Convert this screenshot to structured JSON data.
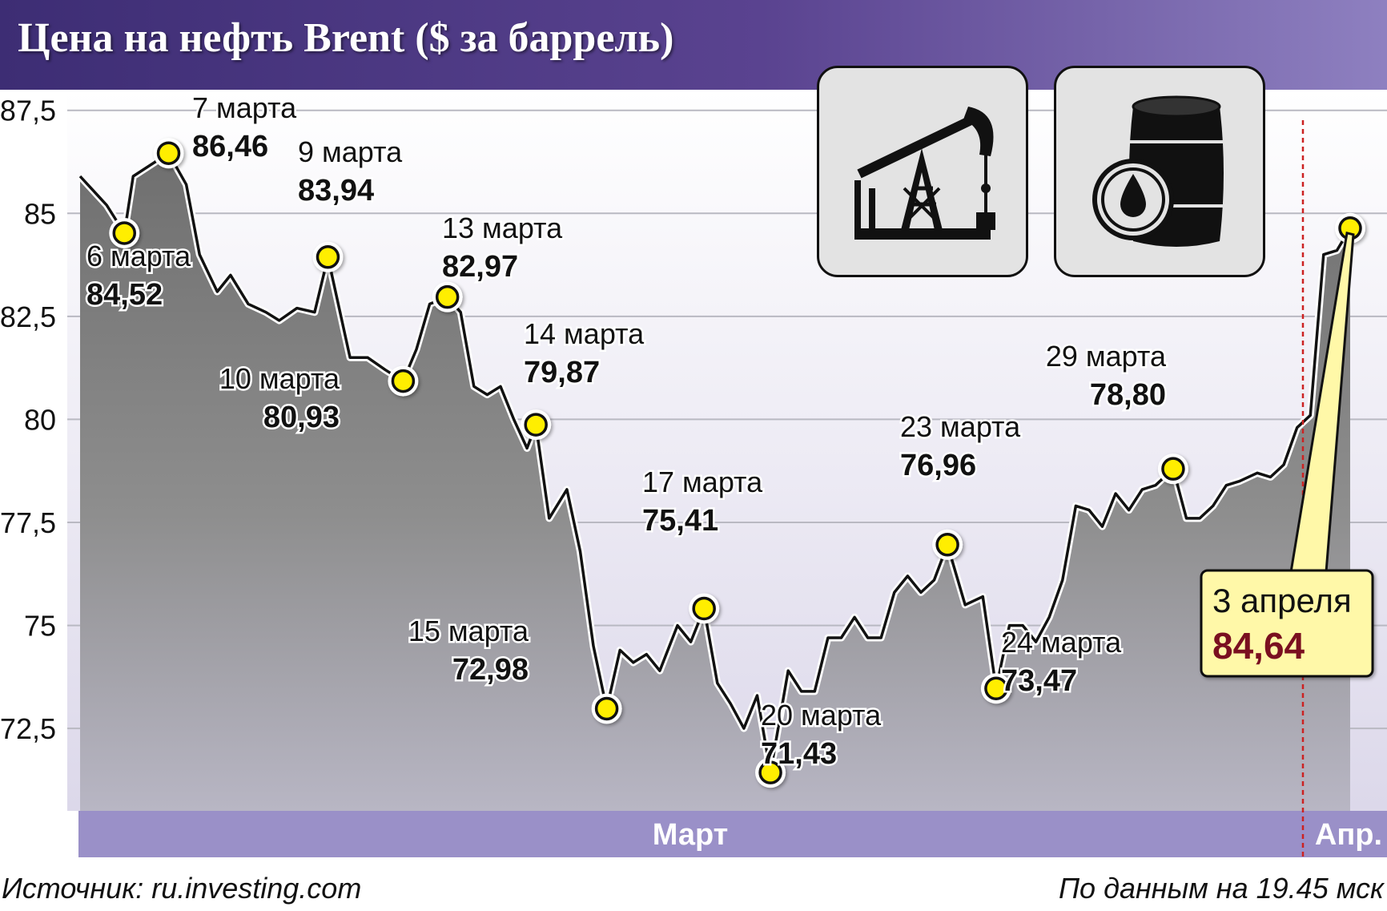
{
  "title": "Цена на нефть Brent ($ за баррель)",
  "footer": {
    "source": "Источник: ru.investing.com",
    "as_of": "По данным на 19.45 мск"
  },
  "icons": [
    "oil-pump-jack-icon",
    "oil-barrel-icon"
  ],
  "colors": {
    "header": "#4a3782",
    "area_fill": "#8a8a8a",
    "marker": "#ffee00",
    "axis_band": "#9a90c8",
    "highlight_value": "#7a1020",
    "callout_bg": "#fff8a8",
    "divider": "#cc2222"
  },
  "chart_data": {
    "type": "area",
    "ylim": [
      70.5,
      88
    ],
    "yticks": [
      72.5,
      75,
      77.5,
      80,
      82.5,
      85,
      87.5
    ],
    "ytick_labels": [
      "72,5",
      "75",
      "77,5",
      "80",
      "82,5",
      "85",
      "87,5"
    ],
    "x_band_labels": [
      "Март",
      "Апр."
    ],
    "grid": true,
    "series_line": [
      [
        0,
        85.9
      ],
      [
        0.6,
        85.2
      ],
      [
        1,
        84.52
      ],
      [
        1.2,
        85.9
      ],
      [
        2,
        86.46
      ],
      [
        2.4,
        85.7
      ],
      [
        2.7,
        84.0
      ],
      [
        3.1,
        83.1
      ],
      [
        3.4,
        83.5
      ],
      [
        3.8,
        82.8
      ],
      [
        4.2,
        82.6
      ],
      [
        4.5,
        82.4
      ],
      [
        4.9,
        82.7
      ],
      [
        5.3,
        82.6
      ],
      [
        5.6,
        83.94
      ],
      [
        6.1,
        81.5
      ],
      [
        6.5,
        81.5
      ],
      [
        6.9,
        81.2
      ],
      [
        7.3,
        80.93
      ],
      [
        7.6,
        81.7
      ],
      [
        7.9,
        82.8
      ],
      [
        8.3,
        82.97
      ],
      [
        8.6,
        82.6
      ],
      [
        8.9,
        80.8
      ],
      [
        9.2,
        80.6
      ],
      [
        9.5,
        80.8
      ],
      [
        9.8,
        80.0
      ],
      [
        10.1,
        79.3
      ],
      [
        10.3,
        79.87
      ],
      [
        10.6,
        77.6
      ],
      [
        11.0,
        78.3
      ],
      [
        11.3,
        76.8
      ],
      [
        11.6,
        74.5
      ],
      [
        11.9,
        72.98
      ],
      [
        12.2,
        74.4
      ],
      [
        12.5,
        74.1
      ],
      [
        12.8,
        74.3
      ],
      [
        13.1,
        73.9
      ],
      [
        13.5,
        75.0
      ],
      [
        13.8,
        74.6
      ],
      [
        14.1,
        75.41
      ],
      [
        14.4,
        73.6
      ],
      [
        14.7,
        73.1
      ],
      [
        15.0,
        72.5
      ],
      [
        15.3,
        73.3
      ],
      [
        15.6,
        71.43
      ],
      [
        16.0,
        73.9
      ],
      [
        16.3,
        73.4
      ],
      [
        16.6,
        73.4
      ],
      [
        16.9,
        74.7
      ],
      [
        17.2,
        74.7
      ],
      [
        17.5,
        75.2
      ],
      [
        17.8,
        74.7
      ],
      [
        18.1,
        74.7
      ],
      [
        18.4,
        75.8
      ],
      [
        18.7,
        76.2
      ],
      [
        19.0,
        75.8
      ],
      [
        19.3,
        76.1
      ],
      [
        19.6,
        76.96
      ],
      [
        20.0,
        75.5
      ],
      [
        20.4,
        75.7
      ],
      [
        20.7,
        73.47
      ],
      [
        21.0,
        75.0
      ],
      [
        21.3,
        75.0
      ],
      [
        21.6,
        74.6
      ],
      [
        21.9,
        75.2
      ],
      [
        22.2,
        76.1
      ],
      [
        22.5,
        77.9
      ],
      [
        22.8,
        77.8
      ],
      [
        23.1,
        77.4
      ],
      [
        23.4,
        78.2
      ],
      [
        23.7,
        77.8
      ],
      [
        24.0,
        78.3
      ],
      [
        24.3,
        78.4
      ],
      [
        24.7,
        78.8
      ],
      [
        25.0,
        77.6
      ],
      [
        25.3,
        77.6
      ],
      [
        25.6,
        77.9
      ],
      [
        25.9,
        78.4
      ],
      [
        26.2,
        78.5
      ],
      [
        26.6,
        78.7
      ],
      [
        26.9,
        78.6
      ],
      [
        27.2,
        78.9
      ],
      [
        27.5,
        79.8
      ],
      [
        27.8,
        80.1
      ],
      [
        28.1,
        84.0
      ],
      [
        28.4,
        84.1
      ],
      [
        28.7,
        84.64
      ]
    ],
    "labeled_points": [
      {
        "x": 1,
        "y": 84.52,
        "date": "6 марта",
        "value": "84,52"
      },
      {
        "x": 2,
        "y": 86.46,
        "date": "7 марта",
        "value": "86,46"
      },
      {
        "x": 5.6,
        "y": 83.94,
        "date": "9 марта",
        "value": "83,94"
      },
      {
        "x": 7.3,
        "y": 80.93,
        "date": "10 марта",
        "value": "80,93"
      },
      {
        "x": 8.3,
        "y": 82.97,
        "date": "13 марта",
        "value": "82,97"
      },
      {
        "x": 10.3,
        "y": 79.87,
        "date": "14 марта",
        "value": "79,87"
      },
      {
        "x": 11.9,
        "y": 72.98,
        "date": "15 марта",
        "value": "72,98"
      },
      {
        "x": 14.1,
        "y": 75.41,
        "date": "17 марта",
        "value": "75,41"
      },
      {
        "x": 15.6,
        "y": 71.43,
        "date": "20 марта",
        "value": "71,43"
      },
      {
        "x": 19.6,
        "y": 76.96,
        "date": "23 марта",
        "value": "76,96"
      },
      {
        "x": 20.7,
        "y": 73.47,
        "date": "24 марта",
        "value": "73,47"
      },
      {
        "x": 24.7,
        "y": 78.8,
        "date": "29 марта",
        "value": "78,80"
      },
      {
        "x": 28.7,
        "y": 84.64,
        "date": "3 апреля",
        "value": "84,64",
        "highlight": true
      }
    ]
  }
}
